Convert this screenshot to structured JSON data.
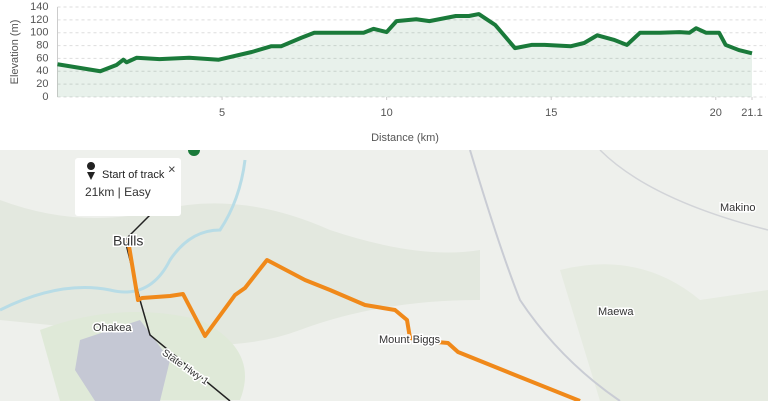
{
  "chart_data": {
    "type": "line",
    "x_label": "Distance (km)",
    "y_label": "Elevation (m)",
    "x": [
      0,
      1.3,
      1.8,
      2.0,
      2.1,
      2.4,
      3.1,
      4.0,
      4.9,
      5.9,
      6.5,
      6.8,
      7.4,
      7.8,
      8.6,
      9.3,
      9.6,
      10.0,
      10.3,
      10.9,
      11.3,
      12.1,
      12.5,
      12.8,
      13.3,
      13.9,
      14.4,
      14.8,
      15.6,
      16.0,
      16.4,
      16.9,
      17.3,
      17.7,
      18.3,
      18.9,
      19.2,
      19.4,
      19.7,
      20.1,
      20.3,
      20.7,
      21.1
    ],
    "series": [
      {
        "color": "#1a7a3a",
        "values": [
          51,
          40,
          50,
          58,
          54,
          61,
          59,
          61,
          58,
          70,
          79,
          79,
          92,
          100,
          100,
          100,
          106,
          101,
          118,
          121,
          118,
          126,
          126,
          129,
          112,
          76,
          81,
          81,
          79,
          84,
          96,
          89,
          81,
          100,
          100,
          101,
          100,
          107,
          100,
          100,
          81,
          73,
          68
        ]
      }
    ],
    "xlim": [
      0,
      21.1
    ],
    "xticks": [
      5,
      10,
      15,
      20,
      21.1
    ],
    "ylim": [
      0,
      140
    ],
    "yticks": [
      0,
      20,
      40,
      60,
      80,
      100,
      120,
      140
    ],
    "grid": true
  },
  "map": {
    "popup": {
      "title": "Start of track",
      "subtitle": "21km | Easy",
      "close": "×"
    },
    "labels": [
      "Bulls",
      "Ohakea",
      "Mount Biggs",
      "Maewa",
      "Makino",
      "State Hwy 1"
    ]
  }
}
